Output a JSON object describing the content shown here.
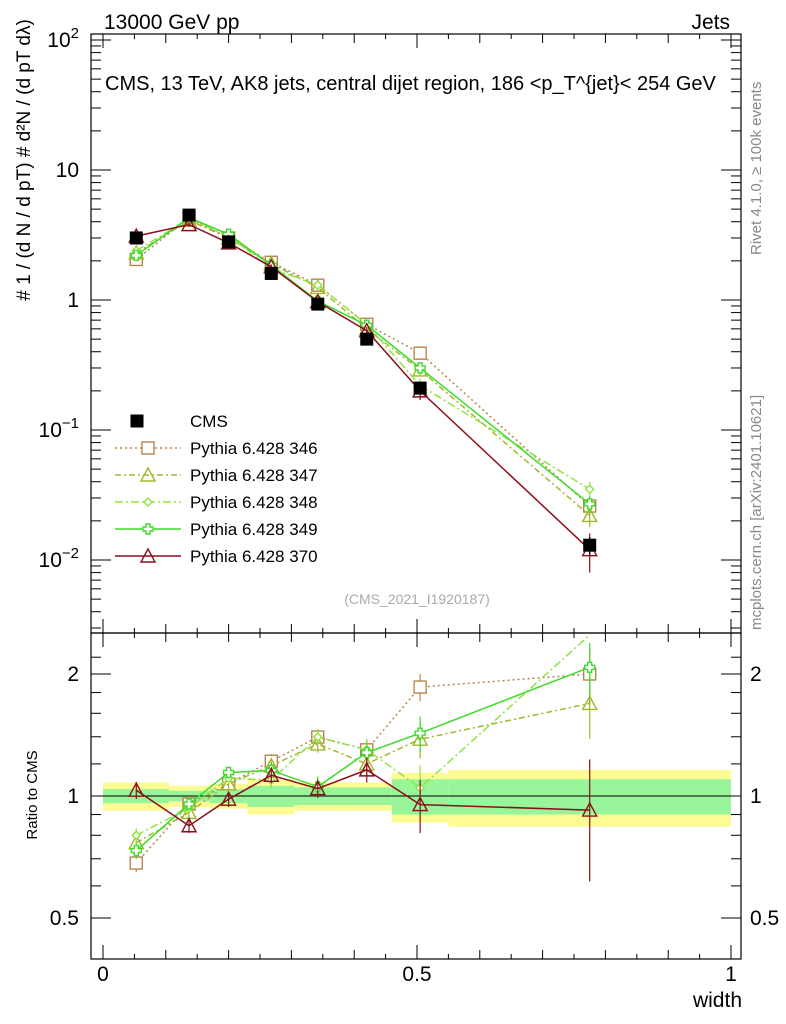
{
  "header": {
    "left": "13000 GeV pp",
    "right": "Jets"
  },
  "side_text": {
    "rivet": "Rivet 4.1.0, ≥ 100k events",
    "mcplots": "mcplots.cern.ch [arXiv:2401.10621]"
  },
  "y_axis": {
    "label": "# 1 / (d N / d pT) # d²N / (d pT dλ)"
  },
  "ratio_axis": {
    "label": "Ratio to CMS"
  },
  "chart_data": {
    "type": "line",
    "title": "CMS, 13 TeV, AK8 jets, central dijet region, 186 <p_T^{jet}< 254 GeV",
    "analysis_id": "(CMS_2021_I1920187)",
    "xlabel": "width",
    "ylabel": "1/(dN/dpT) d²N/(dpT dλ)",
    "xlim": [
      0,
      1
    ],
    "ylim": [
      0.003,
      100
    ],
    "yscale": "log",
    "ratio_ylim": [
      0.4,
      2.3
    ],
    "x_ticks": [
      {
        "value": 0,
        "label": "0"
      },
      {
        "value": 0.5,
        "label": "0.5"
      },
      {
        "value": 1,
        "label": "1"
      }
    ],
    "y_ticks": [
      {
        "value": 0.01,
        "base": "10",
        "exp": "−2"
      },
      {
        "value": 0.1,
        "base": "10",
        "exp": "−1"
      },
      {
        "value": 1,
        "base": "1",
        "exp": ""
      },
      {
        "value": 10,
        "base": "10",
        "exp": ""
      },
      {
        "value": 100,
        "base": "10",
        "exp": "2"
      }
    ],
    "ratio_ticks": [
      {
        "value": 0.5,
        "label": "0.5"
      },
      {
        "value": 1,
        "label": "1"
      },
      {
        "value": 2,
        "label": "2"
      }
    ],
    "x": [
      0.053,
      0.137,
      0.2,
      0.268,
      0.342,
      0.42,
      0.505,
      0.775
    ],
    "bins": [
      [
        0,
        0.105
      ],
      [
        0.105,
        0.17
      ],
      [
        0.17,
        0.23
      ],
      [
        0.23,
        0.305
      ],
      [
        0.305,
        0.38
      ],
      [
        0.38,
        0.46
      ],
      [
        0.46,
        0.55
      ],
      [
        0.55,
        1.0
      ]
    ],
    "data": {
      "name": "CMS",
      "values": [
        3.0,
        4.5,
        2.8,
        1.6,
        0.93,
        0.5,
        0.21,
        0.013
      ],
      "errors": [
        0.15,
        0.2,
        0.12,
        0.08,
        0.05,
        0.03,
        0.02,
        0.002
      ],
      "band_inner": [
        0.04,
        0.03,
        0.04,
        0.06,
        0.05,
        0.05,
        0.1,
        0.1
      ],
      "band_outer": [
        0.08,
        0.06,
        0.07,
        0.1,
        0.08,
        0.08,
        0.14,
        0.16
      ]
    },
    "series": [
      {
        "name": "Pythia 6.428 346",
        "color": "#b8864b",
        "dash": "2,3",
        "marker": "square",
        "values": [
          2.05,
          4.3,
          3.0,
          1.95,
          1.3,
          0.65,
          0.39,
          0.026
        ],
        "errors": [
          0.1,
          0.15,
          0.1,
          0.08,
          0.06,
          0.04,
          0.03,
          0.004
        ]
      },
      {
        "name": "Pythia 6.428 347",
        "color": "#a5b52b",
        "dash": "6,3,2,3",
        "marker": "triangle",
        "values": [
          2.3,
          4.1,
          3.0,
          1.9,
          1.25,
          0.6,
          0.29,
          0.022
        ],
        "errors": [
          0.1,
          0.15,
          0.1,
          0.08,
          0.06,
          0.04,
          0.03,
          0.004
        ]
      },
      {
        "name": "Pythia 6.428 348",
        "color": "#8ee53f",
        "dash": "8,3,2,3",
        "marker": "diamond",
        "values": [
          2.4,
          4.2,
          3.1,
          1.75,
          1.3,
          0.65,
          0.22,
          0.035
        ],
        "errors": [
          0.1,
          0.15,
          0.1,
          0.08,
          0.06,
          0.04,
          0.03,
          0.005
        ]
      },
      {
        "name": "Pythia 6.428 349",
        "color": "#3cdc28",
        "dash": "",
        "marker": "cross",
        "values": [
          2.2,
          4.3,
          3.2,
          1.85,
          0.98,
          0.64,
          0.3,
          0.027
        ],
        "errors": [
          0.1,
          0.15,
          0.1,
          0.08,
          0.06,
          0.04,
          0.03,
          0.004
        ]
      },
      {
        "name": "Pythia 6.428 370",
        "color": "#8b0f1a",
        "dash": "",
        "marker": "triangle",
        "values": [
          3.1,
          3.8,
          2.75,
          1.8,
          0.97,
          0.58,
          0.2,
          0.012
        ],
        "errors": [
          0.15,
          0.15,
          0.12,
          0.08,
          0.05,
          0.04,
          0.03,
          0.004
        ]
      }
    ]
  }
}
